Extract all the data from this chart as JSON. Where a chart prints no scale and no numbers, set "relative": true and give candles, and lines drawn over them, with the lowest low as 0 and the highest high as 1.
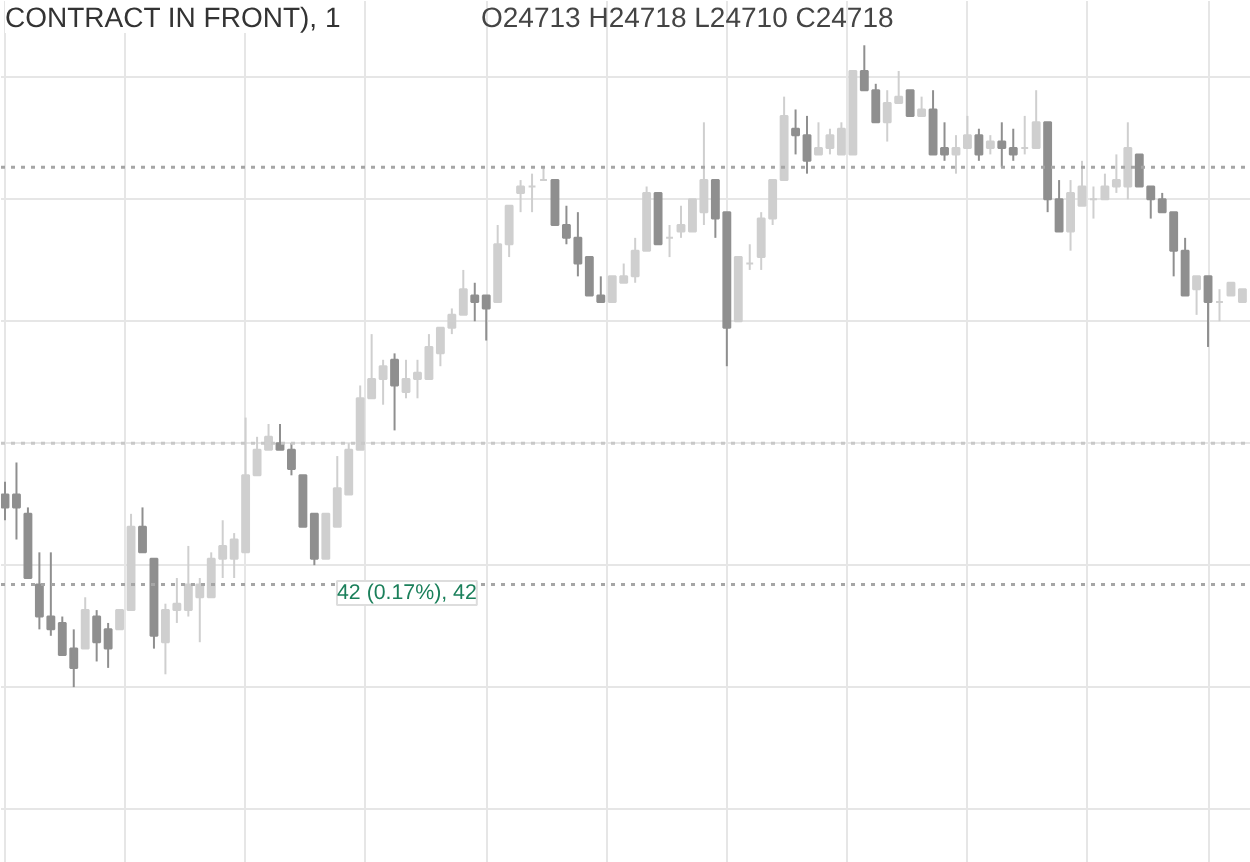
{
  "chart_data": {
    "type": "candlestick",
    "title": "CONTRACT IN FRONT), 1",
    "relative": true,
    "grid": true,
    "colors": [
      "#8f8f8f",
      "#8f8f8f",
      "#8f8f8f",
      "#8f8f8f",
      "#8f8f8f",
      "#8f8f8f",
      "#8f8f8f",
      "#cfcfcf",
      "#8f8f8f",
      "#8f8f8f",
      "#cfcfcf",
      "#cfcfcf",
      "#8f8f8f",
      "#8f8f8f",
      "#cfcfcf",
      "#cfcfcf",
      "#cfcfcf",
      "#cfcfcf",
      "#cfcfcf",
      "#cfcfcf",
      "#cfcfcf",
      "#cfcfcf",
      "#cfcfcf",
      "#cfcfcf",
      "#8f8f8f",
      "#8f8f8f",
      "#8f8f8f",
      "#8f8f8f",
      "#cfcfcf",
      "#cfcfcf",
      "#cfcfcf",
      "#cfcfcf",
      "#cfcfcf",
      "#cfcfcf",
      "#8f8f8f",
      "#cfcfcf",
      "#cfcfcf",
      "#cfcfcf",
      "#cfcfcf",
      "#cfcfcf",
      "#cfcfcf",
      "#8f8f8f",
      "#8f8f8f",
      "#cfcfcf",
      "#cfcfcf",
      "#cfcfcf",
      "#cfcfcf",
      "#cfcfcf",
      "#8f8f8f",
      "#8f8f8f",
      "#8f8f8f",
      "#8f8f8f",
      "#8f8f8f",
      "#cfcfcf",
      "#cfcfcf",
      "#cfcfcf",
      "#cfcfcf",
      "#8f8f8f",
      "#cfcfcf",
      "#cfcfcf",
      "#cfcfcf",
      "#cfcfcf",
      "#8f8f8f",
      "#8f8f8f",
      "#cfcfcf",
      "#cfcfcf",
      "#cfcfcf",
      "#cfcfcf",
      "#cfcfcf",
      "#8f8f8f",
      "#8f8f8f",
      "#cfcfcf",
      "#cfcfcf",
      "#cfcfcf",
      "#cfcfcf",
      "#8f8f8f",
      "#8f8f8f",
      "#cfcfcf",
      "#cfcfcf",
      "#8f8f8f",
      "#cfcfcf",
      "#8f8f8f",
      "#8f8f8f",
      "#cfcfcf",
      "#cfcfcf",
      "#8f8f8f",
      "#cfcfcf",
      "#8f8f8f",
      "#8f8f8f",
      "#cfcfcf",
      "#cfcfcf",
      "#8f8f8f",
      "#8f8f8f",
      "#cfcfcf",
      "#cfcfcf",
      "#cfcfcf",
      "#cfcfcf",
      "#cfcfcf",
      "#cfcfcf",
      "#8f8f8f",
      "#8f8f8f",
      "#8f8f8f",
      "#8f8f8f",
      "#8f8f8f",
      "#cfcfcf",
      "#8f8f8f",
      "#cfcfcf",
      "#cfcfcf",
      "#cfcfcf"
    ],
    "annotations": [
      "O24713 H24718 L24710 C24718",
      "42 (0.17%), 42"
    ],
    "ref_lines": [
      {
        "axis": "y",
        "value": 0.81,
        "color": "#a6a6a6",
        "line_style": "dotted"
      },
      {
        "axis": "y",
        "value": 0.38,
        "color": "#c8c8c8",
        "line_style": "dotted"
      },
      {
        "axis": "y",
        "value": 0.16,
        "color": "#a6a6a6",
        "line_style": "dotted"
      }
    ],
    "categories": [
      null,
      null,
      null,
      null,
      null,
      null,
      null,
      null,
      null,
      null,
      null,
      null,
      null,
      null,
      null,
      null,
      null,
      null,
      null,
      null,
      null,
      null,
      null,
      null,
      null,
      null,
      null,
      null,
      null,
      null,
      null,
      null,
      null,
      null,
      null,
      null,
      null,
      null,
      null,
      null,
      null,
      null,
      null,
      null,
      null,
      null,
      null,
      null,
      null,
      null,
      null,
      null,
      null,
      null,
      null,
      null,
      null,
      null,
      null,
      null,
      null,
      null,
      null,
      null,
      null,
      null,
      null,
      null,
      null,
      null,
      null,
      null,
      null,
      null,
      null,
      null,
      null,
      null,
      null,
      null,
      null,
      null,
      null,
      null,
      null,
      null,
      null,
      null,
      null,
      null,
      null,
      null,
      null,
      null,
      null,
      null,
      null,
      null,
      null,
      null,
      null,
      null,
      null,
      null,
      null,
      null,
      null,
      null,
      null
    ],
    "ohlc": [
      [
        0.3,
        0.32,
        0.26,
        0.28
      ],
      [
        0.3,
        0.35,
        0.23,
        0.28
      ],
      [
        0.27,
        0.28,
        0.17,
        0.17
      ],
      [
        0.16,
        0.21,
        0.09,
        0.11
      ],
      [
        0.11,
        0.21,
        0.08,
        0.09
      ],
      [
        0.1,
        0.11,
        0.05,
        0.05
      ],
      [
        0.06,
        0.09,
        0.0,
        0.03
      ],
      [
        0.06,
        0.14,
        0.06,
        0.12
      ],
      [
        0.11,
        0.12,
        0.04,
        0.07
      ],
      [
        0.09,
        0.1,
        0.03,
        0.06
      ],
      [
        0.09,
        0.12,
        0.09,
        0.12
      ],
      [
        0.12,
        0.27,
        0.12,
        0.25
      ],
      [
        0.25,
        0.28,
        0.21,
        0.21
      ],
      [
        0.2,
        0.2,
        0.06,
        0.08
      ],
      [
        0.07,
        0.13,
        0.02,
        0.12
      ],
      [
        0.12,
        0.17,
        0.1,
        0.13
      ],
      [
        0.12,
        0.22,
        0.11,
        0.16
      ],
      [
        0.14,
        0.17,
        0.07,
        0.16
      ],
      [
        0.14,
        0.21,
        0.14,
        0.2
      ],
      [
        0.2,
        0.26,
        0.17,
        0.22
      ],
      [
        0.2,
        0.24,
        0.17,
        0.23
      ],
      [
        0.21,
        0.42,
        0.21,
        0.33
      ],
      [
        0.33,
        0.39,
        0.33,
        0.37
      ],
      [
        0.37,
        0.41,
        0.37,
        0.39
      ],
      [
        0.38,
        0.41,
        0.37,
        0.37
      ],
      [
        0.37,
        0.38,
        0.33,
        0.34
      ],
      [
        0.33,
        0.33,
        0.25,
        0.25
      ],
      [
        0.27,
        0.27,
        0.19,
        0.2
      ],
      [
        0.2,
        0.27,
        0.2,
        0.27
      ],
      [
        0.25,
        0.36,
        0.25,
        0.31
      ],
      [
        0.3,
        0.38,
        0.3,
        0.37
      ],
      [
        0.37,
        0.47,
        0.37,
        0.45
      ],
      [
        0.45,
        0.55,
        0.45,
        0.48
      ],
      [
        0.48,
        0.51,
        0.44,
        0.5
      ],
      [
        0.51,
        0.52,
        0.4,
        0.47
      ],
      [
        0.46,
        0.51,
        0.45,
        0.48
      ],
      [
        0.48,
        0.51,
        0.45,
        0.49
      ],
      [
        0.48,
        0.55,
        0.48,
        0.53
      ],
      [
        0.52,
        0.56,
        0.5,
        0.56
      ],
      [
        0.56,
        0.59,
        0.55,
        0.58
      ],
      [
        0.58,
        0.65,
        0.58,
        0.62
      ],
      [
        0.61,
        0.63,
        0.57,
        0.6
      ],
      [
        0.61,
        0.61,
        0.54,
        0.59
      ],
      [
        0.6,
        0.72,
        0.6,
        0.69
      ],
      [
        0.69,
        0.75,
        0.67,
        0.75
      ],
      [
        0.77,
        0.79,
        0.74,
        0.78
      ],
      [
        0.78,
        0.8,
        0.74,
        0.78
      ],
      [
        0.79,
        0.81,
        0.79,
        0.79
      ],
      [
        0.79,
        0.79,
        0.72,
        0.72
      ],
      [
        0.72,
        0.75,
        0.69,
        0.7
      ],
      [
        0.7,
        0.74,
        0.64,
        0.66
      ],
      [
        0.67,
        0.67,
        0.61,
        0.61
      ],
      [
        0.61,
        0.64,
        0.6,
        0.6
      ],
      [
        0.6,
        0.64,
        0.6,
        0.64
      ],
      [
        0.63,
        0.66,
        0.63,
        0.64
      ],
      [
        0.64,
        0.7,
        0.63,
        0.68
      ],
      [
        0.68,
        0.78,
        0.68,
        0.77
      ],
      [
        0.77,
        0.77,
        0.69,
        0.69
      ],
      [
        0.7,
        0.72,
        0.67,
        0.7
      ],
      [
        0.71,
        0.75,
        0.7,
        0.72
      ],
      [
        0.71,
        0.76,
        0.71,
        0.76
      ],
      [
        0.74,
        0.88,
        0.72,
        0.79
      ],
      [
        0.79,
        0.79,
        0.7,
        0.73
      ],
      [
        0.74,
        0.74,
        0.5,
        0.56
      ],
      [
        0.57,
        0.67,
        0.57,
        0.67
      ],
      [
        0.66,
        0.69,
        0.65,
        0.66
      ],
      [
        0.67,
        0.74,
        0.65,
        0.73
      ],
      [
        0.73,
        0.79,
        0.72,
        0.79
      ],
      [
        0.79,
        0.92,
        0.79,
        0.89
      ],
      [
        0.87,
        0.9,
        0.83,
        0.86
      ],
      [
        0.86,
        0.89,
        0.8,
        0.82
      ],
      [
        0.83,
        0.88,
        0.83,
        0.84
      ],
      [
        0.84,
        0.87,
        0.83,
        0.86
      ],
      [
        0.83,
        0.88,
        0.83,
        0.87
      ],
      [
        0.83,
        0.96,
        0.83,
        0.96
      ],
      [
        0.96,
        1.0,
        0.93,
        0.93
      ],
      [
        0.93,
        0.94,
        0.88,
        0.88
      ],
      [
        0.88,
        0.93,
        0.85,
        0.91
      ],
      [
        0.91,
        0.96,
        0.91,
        0.92
      ],
      [
        0.93,
        0.93,
        0.89,
        0.89
      ],
      [
        0.89,
        0.92,
        0.89,
        0.9
      ],
      [
        0.9,
        0.93,
        0.83,
        0.83
      ],
      [
        0.84,
        0.88,
        0.82,
        0.83
      ],
      [
        0.83,
        0.86,
        0.8,
        0.84
      ],
      [
        0.84,
        0.89,
        0.84,
        0.86
      ],
      [
        0.86,
        0.87,
        0.82,
        0.83
      ],
      [
        0.84,
        0.86,
        0.83,
        0.85
      ],
      [
        0.85,
        0.88,
        0.81,
        0.84
      ],
      [
        0.84,
        0.87,
        0.82,
        0.83
      ],
      [
        0.84,
        0.89,
        0.83,
        0.84
      ],
      [
        0.84,
        0.93,
        0.84,
        0.88
      ],
      [
        0.88,
        0.88,
        0.74,
        0.76
      ],
      [
        0.76,
        0.79,
        0.71,
        0.71
      ],
      [
        0.71,
        0.79,
        0.68,
        0.77
      ],
      [
        0.75,
        0.82,
        0.75,
        0.78
      ],
      [
        0.76,
        0.78,
        0.73,
        0.76
      ],
      [
        0.76,
        0.8,
        0.76,
        0.78
      ],
      [
        0.78,
        0.83,
        0.77,
        0.79
      ],
      [
        0.78,
        0.88,
        0.76,
        0.84
      ],
      [
        0.83,
        0.83,
        0.78,
        0.78
      ],
      [
        0.78,
        0.78,
        0.73,
        0.76
      ],
      [
        0.76,
        0.77,
        0.74,
        0.74
      ],
      [
        0.74,
        0.74,
        0.64,
        0.68
      ],
      [
        0.68,
        0.7,
        0.61,
        0.61
      ],
      [
        0.62,
        0.64,
        0.58,
        0.64
      ],
      [
        0.64,
        0.64,
        0.53,
        0.6
      ],
      [
        0.6,
        0.62,
        0.57,
        0.6
      ],
      [
        0.61,
        0.63,
        0.61,
        0.63
      ],
      [
        0.6,
        0.62,
        0.6,
        0.62
      ]
    ]
  }
}
